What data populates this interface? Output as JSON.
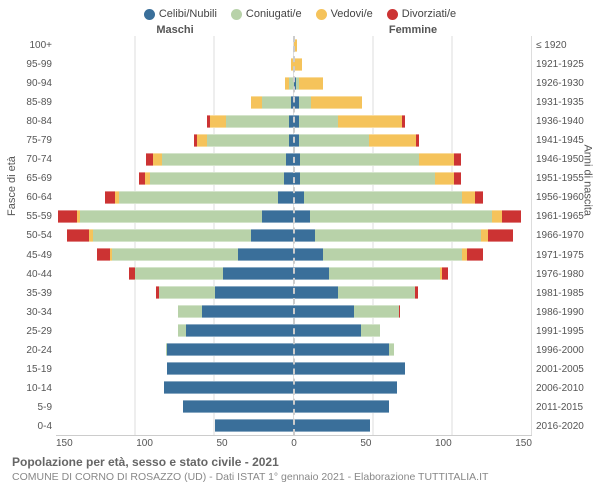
{
  "legend": [
    {
      "label": "Celibi/Nubili",
      "color": "#3a6f9a"
    },
    {
      "label": "Coniugati/e",
      "color": "#b8d2a9"
    },
    {
      "label": "Vedovi/e",
      "color": "#f5c35b"
    },
    {
      "label": "Divorziati/e",
      "color": "#cc3333"
    }
  ],
  "gender_left": "Maschi",
  "gender_right": "Femmine",
  "y_axis_left_title": "Fasce di età",
  "y_axis_right_title": "Anni di nascita",
  "x_ticks": [
    "150",
    "100",
    "50",
    "0",
    "50",
    "100",
    "150"
  ],
  "x_max": 150,
  "colors": {
    "celibi": "#3a6f9a",
    "coniugati": "#b8d2a9",
    "vedovi": "#f5c35b",
    "divorziati": "#cc3333",
    "grid": "#dddddd",
    "background": "#ffffff"
  },
  "age_bands": [
    {
      "label": "100+",
      "birth": "≤ 1920",
      "m": {
        "c": 0,
        "co": 0,
        "v": 0,
        "d": 0
      },
      "f": {
        "c": 0,
        "co": 0,
        "v": 2,
        "d": 0
      }
    },
    {
      "label": "95-99",
      "birth": "1921-1925",
      "m": {
        "c": 0,
        "co": 0,
        "v": 2,
        "d": 0
      },
      "f": {
        "c": 0,
        "co": 0,
        "v": 5,
        "d": 0
      }
    },
    {
      "label": "90-94",
      "birth": "1926-1930",
      "m": {
        "c": 0,
        "co": 3,
        "v": 3,
        "d": 0
      },
      "f": {
        "c": 1,
        "co": 2,
        "v": 15,
        "d": 0
      }
    },
    {
      "label": "85-89",
      "birth": "1931-1935",
      "m": {
        "c": 2,
        "co": 18,
        "v": 7,
        "d": 0
      },
      "f": {
        "c": 3,
        "co": 8,
        "v": 32,
        "d": 0
      }
    },
    {
      "label": "80-84",
      "birth": "1936-1940",
      "m": {
        "c": 3,
        "co": 40,
        "v": 10,
        "d": 2
      },
      "f": {
        "c": 3,
        "co": 25,
        "v": 40,
        "d": 2
      }
    },
    {
      "label": "75-79",
      "birth": "1941-1945",
      "m": {
        "c": 3,
        "co": 52,
        "v": 6,
        "d": 2
      },
      "f": {
        "c": 3,
        "co": 44,
        "v": 30,
        "d": 2
      }
    },
    {
      "label": "70-74",
      "birth": "1946-1950",
      "m": {
        "c": 5,
        "co": 78,
        "v": 6,
        "d": 4
      },
      "f": {
        "c": 4,
        "co": 75,
        "v": 22,
        "d": 4
      }
    },
    {
      "label": "65-69",
      "birth": "1951-1955",
      "m": {
        "c": 6,
        "co": 85,
        "v": 3,
        "d": 4
      },
      "f": {
        "c": 4,
        "co": 85,
        "v": 12,
        "d": 4
      }
    },
    {
      "label": "60-64",
      "birth": "1956-1960",
      "m": {
        "c": 10,
        "co": 100,
        "v": 3,
        "d": 6
      },
      "f": {
        "c": 6,
        "co": 100,
        "v": 8,
        "d": 5
      }
    },
    {
      "label": "55-59",
      "birth": "1961-1965",
      "m": {
        "c": 20,
        "co": 115,
        "v": 2,
        "d": 12
      },
      "f": {
        "c": 10,
        "co": 115,
        "v": 6,
        "d": 12
      }
    },
    {
      "label": "50-54",
      "birth": "1966-1970",
      "m": {
        "c": 27,
        "co": 100,
        "v": 2,
        "d": 14
      },
      "f": {
        "c": 13,
        "co": 105,
        "v": 4,
        "d": 16
      }
    },
    {
      "label": "45-49",
      "birth": "1971-1975",
      "m": {
        "c": 35,
        "co": 80,
        "v": 1,
        "d": 8
      },
      "f": {
        "c": 18,
        "co": 88,
        "v": 3,
        "d": 10
      }
    },
    {
      "label": "40-44",
      "birth": "1976-1980",
      "m": {
        "c": 45,
        "co": 55,
        "v": 0,
        "d": 4
      },
      "f": {
        "c": 22,
        "co": 70,
        "v": 1,
        "d": 4
      }
    },
    {
      "label": "35-39",
      "birth": "1981-1985",
      "m": {
        "c": 50,
        "co": 35,
        "v": 0,
        "d": 2
      },
      "f": {
        "c": 28,
        "co": 48,
        "v": 0,
        "d": 2
      }
    },
    {
      "label": "30-34",
      "birth": "1986-1990",
      "m": {
        "c": 58,
        "co": 15,
        "v": 0,
        "d": 0
      },
      "f": {
        "c": 38,
        "co": 28,
        "v": 0,
        "d": 1
      }
    },
    {
      "label": "25-29",
      "birth": "1991-1995",
      "m": {
        "c": 68,
        "co": 5,
        "v": 0,
        "d": 0
      },
      "f": {
        "c": 42,
        "co": 12,
        "v": 0,
        "d": 0
      }
    },
    {
      "label": "20-24",
      "birth": "1996-2000",
      "m": {
        "c": 80,
        "co": 1,
        "v": 0,
        "d": 0
      },
      "f": {
        "c": 60,
        "co": 3,
        "v": 0,
        "d": 0
      }
    },
    {
      "label": "15-19",
      "birth": "2001-2005",
      "m": {
        "c": 80,
        "co": 0,
        "v": 0,
        "d": 0
      },
      "f": {
        "c": 70,
        "co": 0,
        "v": 0,
        "d": 0
      }
    },
    {
      "label": "10-14",
      "birth": "2006-2010",
      "m": {
        "c": 82,
        "co": 0,
        "v": 0,
        "d": 0
      },
      "f": {
        "c": 65,
        "co": 0,
        "v": 0,
        "d": 0
      }
    },
    {
      "label": "5-9",
      "birth": "2011-2015",
      "m": {
        "c": 70,
        "co": 0,
        "v": 0,
        "d": 0
      },
      "f": {
        "c": 60,
        "co": 0,
        "v": 0,
        "d": 0
      }
    },
    {
      "label": "0-4",
      "birth": "2016-2020",
      "m": {
        "c": 50,
        "co": 0,
        "v": 0,
        "d": 0
      },
      "f": {
        "c": 48,
        "co": 0,
        "v": 0,
        "d": 0
      }
    }
  ],
  "footer_title": "Popolazione per età, sesso e stato civile - 2021",
  "footer_sub": "COMUNE DI CORNO DI ROSAZZO (UD) - Dati ISTAT 1° gennaio 2021 - Elaborazione TUTTITALIA.IT"
}
